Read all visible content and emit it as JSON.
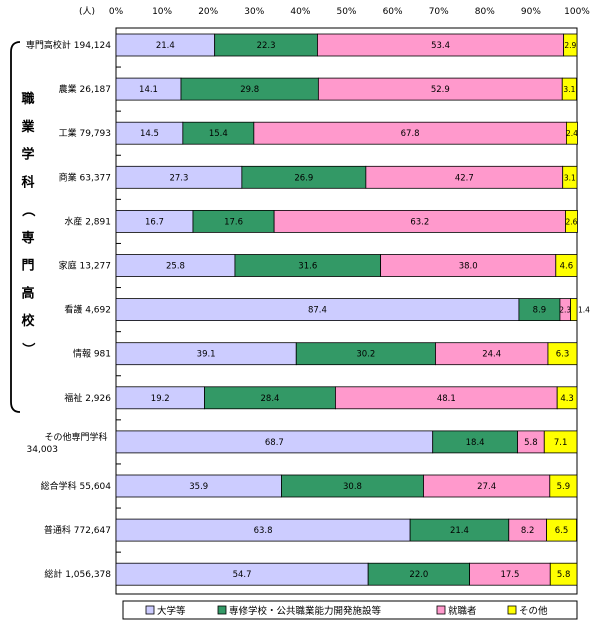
{
  "chart_data": {
    "type": "bar",
    "orientation": "horizontal",
    "stacked": true,
    "unit_label": "(人)",
    "xlim": [
      0,
      100
    ],
    "x_ticks": [
      "0%",
      "10%",
      "20%",
      "30%",
      "40%",
      "50%",
      "60%",
      "70%",
      "80%",
      "90%",
      "100%"
    ],
    "group_label": "職業学科（専門高校）",
    "categories": [
      {
        "name": "専門高校計",
        "count": "194,124",
        "in_group": false
      },
      {
        "name": "農業",
        "count": "26,187",
        "in_group": true
      },
      {
        "name": "工業",
        "count": "79,793",
        "in_group": true
      },
      {
        "name": "商業",
        "count": "63,377",
        "in_group": true
      },
      {
        "name": "水産",
        "count": "2,891",
        "in_group": true
      },
      {
        "name": "家庭",
        "count": "13,277",
        "in_group": true
      },
      {
        "name": "看護",
        "count": "4,692",
        "in_group": true
      },
      {
        "name": "情報",
        "count": "981",
        "in_group": true
      },
      {
        "name": "福祉",
        "count": "2,926",
        "in_group": true
      },
      {
        "name": "その他専門学科",
        "count": "34,003",
        "in_group": false
      },
      {
        "name": "総合学科",
        "count": "55,604",
        "in_group": false
      },
      {
        "name": "普通科",
        "count": "772,647",
        "in_group": false
      },
      {
        "name": "総計",
        "count": "1,056,378",
        "in_group": false
      }
    ],
    "series": [
      {
        "name": "大学等",
        "color": "#ccccff",
        "values": [
          21.4,
          14.1,
          14.5,
          27.3,
          16.7,
          25.8,
          87.4,
          39.1,
          19.2,
          68.7,
          35.9,
          63.8,
          54.7
        ]
      },
      {
        "name": "専修学校・公共職業能力開発施設等",
        "color": "#339966",
        "values": [
          22.3,
          29.8,
          15.4,
          26.9,
          17.6,
          31.6,
          8.9,
          30.2,
          28.4,
          18.4,
          30.8,
          21.4,
          22.0
        ]
      },
      {
        "name": "就職者",
        "color": "#ff99cc",
        "values": [
          53.4,
          52.9,
          67.8,
          42.7,
          63.2,
          38.0,
          2.3,
          24.4,
          48.1,
          5.8,
          27.4,
          8.2,
          17.5
        ]
      },
      {
        "name": "その他",
        "color": "#ffff00",
        "values": [
          2.9,
          3.1,
          2.4,
          3.1,
          2.6,
          4.6,
          1.4,
          6.3,
          4.3,
          7.1,
          5.9,
          6.5,
          5.8
        ]
      }
    ],
    "legend_position": "bottom",
    "grid": false
  }
}
